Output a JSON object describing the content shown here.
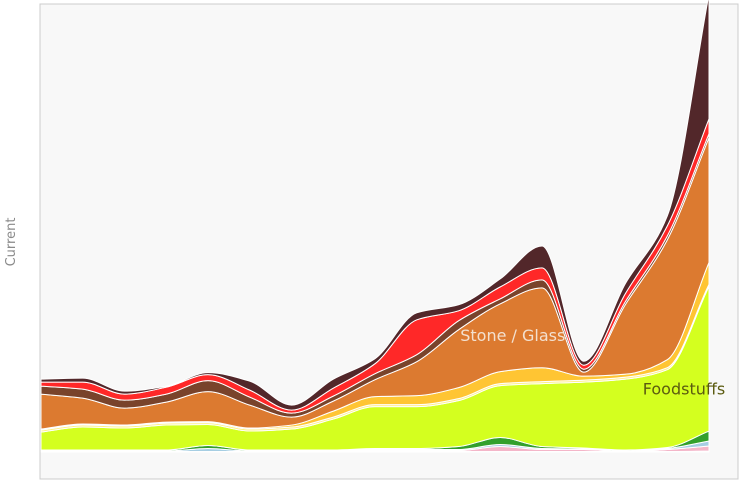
{
  "chart_data": {
    "type": "area",
    "stacked": true,
    "title": "",
    "xlabel": "",
    "ylabel": "Current",
    "x": [
      0,
      1,
      2,
      3,
      4,
      5,
      6,
      7,
      8,
      9,
      10,
      11,
      12,
      13,
      14,
      15,
      16
    ],
    "ylim": [
      0,
      445
    ],
    "grid": false,
    "legend": "none",
    "plot_background": "#f8f8f8",
    "series": [
      {
        "name": "",
        "color": "#c8b3d9",
        "values": [
          0.5,
          0.5,
          0.5,
          0.5,
          0.5,
          0.5,
          0.5,
          0.5,
          0.5,
          0.5,
          0.5,
          0.5,
          0.5,
          0.5,
          0.5,
          0.5,
          1
        ]
      },
      {
        "name": "",
        "color": "#f4b6c9",
        "values": [
          0,
          0,
          0,
          0,
          0,
          0,
          0,
          0,
          1,
          1,
          1,
          5,
          2,
          2,
          0,
          2,
          5
        ]
      },
      {
        "name": "",
        "color": "#a6cee3",
        "values": [
          0.5,
          0.5,
          0.5,
          0.5,
          3,
          0.5,
          0.5,
          0.5,
          1,
          1,
          1,
          2,
          1,
          0.5,
          0.5,
          1,
          5
        ]
      },
      {
        "name": "",
        "color": "#33a02c",
        "values": [
          1,
          1,
          1,
          1,
          3,
          1,
          1,
          1,
          1,
          1,
          3,
          7,
          2,
          1,
          1,
          1,
          10
        ]
      },
      {
        "name": "Foodstuffs",
        "color": "#d4ff1f",
        "values": [
          18,
          23,
          22,
          25,
          21,
          19,
          21,
          31,
          42,
          42,
          46,
          52,
          63,
          66,
          71,
          78,
          145
        ]
      },
      {
        "name": "",
        "color": "#ffef85",
        "values": [
          2,
          2,
          2,
          2,
          2,
          2,
          2,
          2,
          2,
          2,
          2,
          2,
          2,
          2,
          2,
          2,
          2
        ]
      },
      {
        "name": "",
        "color": "#ffc533",
        "values": [
          1,
          1,
          1,
          1,
          1,
          1,
          2,
          6,
          8,
          9,
          11,
          12,
          14,
          4,
          3,
          8,
          22
        ]
      },
      {
        "name": "Stone / Glass",
        "color": "#dc7a30",
        "values": [
          35,
          26,
          17,
          20,
          30,
          23,
          8,
          10,
          17,
          34,
          58,
          68,
          80,
          4,
          70,
          120,
          125
        ]
      },
      {
        "name": "",
        "color": "#79432b",
        "values": [
          8,
          9,
          8,
          8,
          11,
          8,
          4,
          5,
          6,
          7,
          9,
          5,
          8,
          3,
          3,
          4,
          4
        ]
      },
      {
        "name": "",
        "color": "#ff2828",
        "values": [
          4,
          7,
          6,
          7,
          6,
          7,
          3,
          8,
          10,
          35,
          10,
          12,
          12,
          4,
          8,
          10,
          15
        ]
      },
      {
        "name": "",
        "color": "#52272a",
        "values": [
          3,
          4,
          3,
          1,
          2,
          9,
          5,
          9,
          5,
          7,
          6,
          8,
          22,
          4,
          10,
          10,
          125
        ]
      }
    ],
    "labels": [
      {
        "series": "Stone / Glass",
        "text": "Stone / Glass",
        "at_x": 11.3,
        "color": "#f3e0cf"
      },
      {
        "series": "Foodstuffs",
        "text": "Foodstuffs",
        "at_x": 15.4,
        "color": "#5b5b10"
      }
    ]
  }
}
